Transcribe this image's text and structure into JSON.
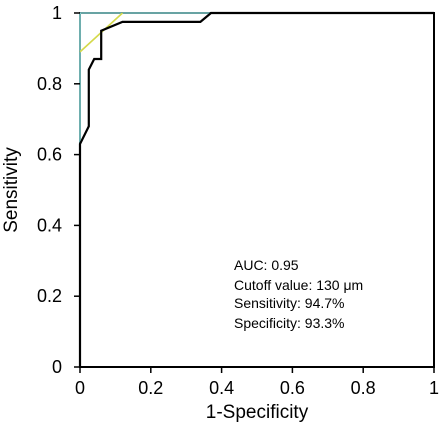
{
  "chart_data": {
    "type": "line",
    "xlabel": "1-Specificity",
    "ylabel": "Sensitivity",
    "xlim": [
      0,
      1
    ],
    "ylim": [
      0,
      1
    ],
    "x_ticks": [
      "0",
      "0.2",
      "0.4",
      "0.6",
      "0.8",
      "1"
    ],
    "y_ticks": [
      "0",
      "0.2",
      "0.4",
      "0.6",
      "0.8",
      "1"
    ],
    "grid": false,
    "series": [
      {
        "color": "#000000",
        "x": [
          0,
          0,
          0.025,
          0.025,
          0.04,
          0.06,
          0.06,
          0.12,
          0.34,
          0.37,
          1
        ],
        "y": [
          0,
          0.63,
          0.68,
          0.84,
          0.87,
          0.87,
          0.95,
          0.975,
          0.975,
          1,
          1
        ]
      },
      {
        "color": "#d4d94a",
        "x": [
          0,
          0.12
        ],
        "y": [
          0.89,
          1.0
        ]
      },
      {
        "color": "#8ad9d9",
        "x": [
          0,
          0,
          1
        ],
        "y": [
          0,
          1,
          1
        ]
      }
    ],
    "annotations": [
      "AUC: 0.95",
      "Cutoff value: 130 μm",
      "Sensitivity: 94.7%",
      "Specificity: 93.3%"
    ]
  }
}
